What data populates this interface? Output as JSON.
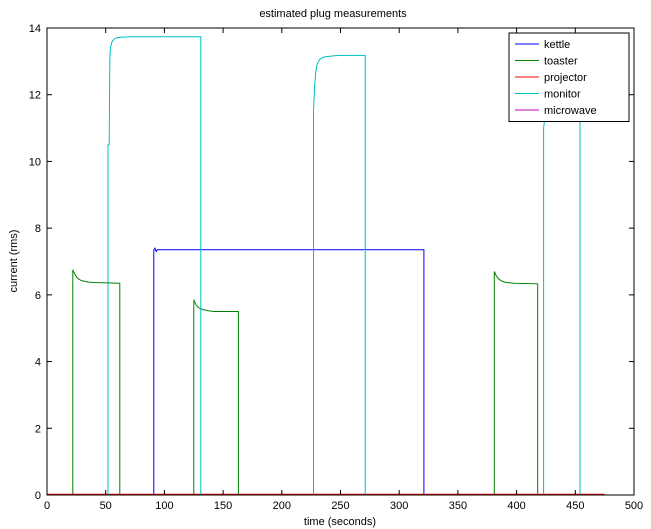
{
  "chart_data": {
    "type": "line",
    "title": "estimated plug measurements",
    "xlabel": "time (seconds)",
    "ylabel": "current (rms)",
    "xlim": [
      0,
      500
    ],
    "ylim": [
      0,
      14
    ],
    "xticks": [
      0,
      50,
      100,
      150,
      200,
      250,
      300,
      350,
      400,
      450,
      500
    ],
    "yticks": [
      0,
      2,
      4,
      6,
      8,
      10,
      12,
      14
    ],
    "grid": false,
    "legend_position": "top-right",
    "series": [
      {
        "name": "kettle",
        "color": "#0000ff",
        "x": [
          0,
          91,
          91,
          92,
          93,
          94,
          96,
          320,
          321,
          321,
          475
        ],
        "y": [
          0,
          0,
          7.35,
          7.4,
          7.3,
          7.35,
          7.35,
          7.35,
          7.35,
          0,
          0
        ]
      },
      {
        "name": "toaster",
        "color": "#008000",
        "x": [
          0,
          22,
          22,
          24,
          26,
          28,
          30,
          33,
          36,
          40,
          62,
          62,
          125,
          125,
          127,
          129,
          131,
          134,
          138,
          142,
          163,
          163,
          381,
          381,
          383,
          385,
          387,
          390,
          394,
          398,
          418,
          418,
          475
        ],
        "y": [
          0,
          0,
          6.75,
          6.6,
          6.5,
          6.45,
          6.42,
          6.4,
          6.38,
          6.37,
          6.35,
          0,
          0,
          5.85,
          5.7,
          5.62,
          5.58,
          5.55,
          5.52,
          5.5,
          5.5,
          0,
          0,
          6.7,
          6.55,
          6.47,
          6.42,
          6.38,
          6.36,
          6.35,
          6.33,
          0,
          0
        ]
      },
      {
        "name": "projector",
        "color": "#ff0000",
        "x": [
          0,
          475
        ],
        "y": [
          0.02,
          0.02
        ]
      },
      {
        "name": "monitor",
        "color": "#00bfbf",
        "x": [
          0,
          52,
          52,
          53,
          53.5,
          54,
          55,
          56,
          57,
          58,
          60,
          63,
          67,
          72,
          80,
          131,
          131,
          227,
          227,
          228,
          229,
          230,
          232,
          234,
          236,
          240,
          245,
          250,
          271,
          271,
          423,
          423,
          424,
          424.5,
          454,
          454,
          475
        ],
        "y": [
          0,
          0,
          10.5,
          10.5,
          13.0,
          13.4,
          13.55,
          13.62,
          13.66,
          13.69,
          13.71,
          13.72,
          13.73,
          13.74,
          13.74,
          13.74,
          0,
          0,
          11.5,
          12.3,
          12.7,
          12.9,
          13.05,
          13.1,
          13.13,
          13.15,
          13.17,
          13.18,
          13.18,
          0,
          0,
          11.0,
          11.3,
          11.5,
          11.5,
          0,
          0
        ]
      },
      {
        "name": "microwave",
        "color": "#bf00bf",
        "x": [
          0,
          475
        ],
        "y": [
          0,
          0
        ]
      }
    ]
  }
}
